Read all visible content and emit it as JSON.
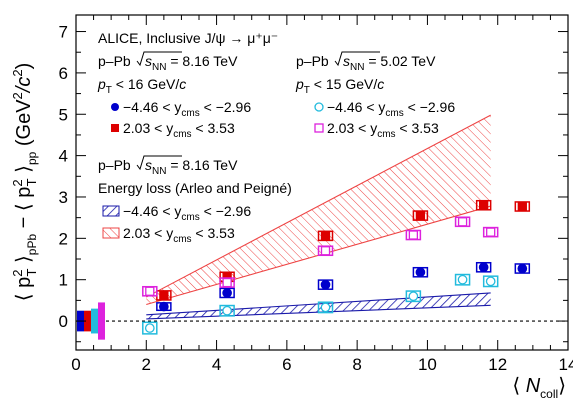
{
  "chart_data": {
    "type": "scatter",
    "x_range": [
      0,
      14
    ],
    "y_range": [
      -0.7,
      7.4
    ],
    "x_ticks": [
      0,
      2,
      4,
      6,
      8,
      10,
      12,
      14
    ],
    "y_ticks": [
      0,
      1,
      2,
      3,
      4,
      5,
      6,
      7
    ],
    "xlabel": {
      "open": "⟨ ",
      "main": "N",
      "sub": "coll",
      "close": "⟩"
    },
    "ylabel": {
      "lead": "⟨ p",
      "sup1": "2",
      "sub1": "T",
      "mid": " ⟩",
      "sub2": "pPb",
      "mid2": " − ⟨ p",
      "sup3": "2",
      "sub3": "T",
      "mid3": " ⟩",
      "sub4": "pp",
      "unit_open": " (GeV",
      "unit_sup": "2",
      "unit_mid": "/c",
      "unit_sup2": "2",
      "unit_close": ")"
    },
    "title": "ALICE, Inclusive J/ψ → μ⁺μ⁻",
    "system_label_pre": "p–Pb ",
    "sqrt_s": "s",
    "sqrt_s_sub": "NN",
    "energy_816": " = 8.16 TeV",
    "energy_502": " = 5.02 TeV",
    "pt_cut_16": {
      "p": "p",
      "sub": "T",
      "rest": " < 16 GeV/",
      "c": "c"
    },
    "pt_cut_15": {
      "p": "p",
      "sub": "T",
      "rest": " < 15 GeV/",
      "c": "c"
    },
    "y_bwd": {
      "pre": "−4.46 < y",
      "sub": "cms",
      "post": " < −2.96"
    },
    "y_fwd": {
      "pre": "2.03 < y",
      "sub": "cms",
      "post": " < 3.53"
    },
    "model_title": "Energy loss (Arleo and Peigné)",
    "colors": {
      "bwd_816": "#0000cc",
      "fwd_816": "#dd0000",
      "bwd_502": "#22bbdd",
      "fwd_502": "#dd22dd",
      "model_bwd": "#1a1aaa",
      "model_fwd": "#ee4444"
    },
    "series": [
      {
        "name": "8.16 TeV backward",
        "marker": "filled-circle",
        "color": "#0000cc",
        "x": [
          2.5,
          4.3,
          7.1,
          9.8,
          11.6,
          12.7
        ],
        "y": [
          0.35,
          0.68,
          0.88,
          1.18,
          1.3,
          1.27
        ],
        "err": [
          0.1,
          0.08,
          0.08,
          0.08,
          0.08,
          0.08
        ],
        "sys": [
          0.18,
          0.22,
          0.22,
          0.22,
          0.22,
          0.22
        ]
      },
      {
        "name": "8.16 TeV forward",
        "marker": "filled-square",
        "color": "#dd0000",
        "x": [
          2.5,
          4.3,
          7.1,
          9.8,
          11.6,
          12.7
        ],
        "y": [
          0.62,
          1.07,
          2.06,
          2.55,
          2.8,
          2.77
        ],
        "err": [
          0.12,
          0.12,
          0.12,
          0.12,
          0.12,
          0.12
        ],
        "sys": [
          0.22,
          0.22,
          0.22,
          0.22,
          0.22,
          0.22
        ]
      },
      {
        "name": "5.02 TeV backward",
        "marker": "open-circle",
        "color": "#22bbdd",
        "x": [
          2.1,
          4.3,
          7.1,
          9.6,
          11.0,
          11.8
        ],
        "y": [
          -0.17,
          0.25,
          0.33,
          0.6,
          1.0,
          0.96
        ],
        "err": [
          0.08,
          0.08,
          0.08,
          0.08,
          0.08,
          0.08
        ],
        "sys": [
          0.28,
          0.25,
          0.25,
          0.25,
          0.25,
          0.25
        ]
      },
      {
        "name": "5.02 TeV forward",
        "marker": "open-square",
        "color": "#dd22dd",
        "x": [
          2.1,
          4.3,
          7.1,
          9.6,
          11.0,
          11.8
        ],
        "y": [
          0.72,
          0.93,
          1.7,
          2.08,
          2.4,
          2.15
        ],
        "err": [
          0.08,
          0.08,
          0.08,
          0.08,
          0.08,
          0.08
        ],
        "sys": [
          0.22,
          0.22,
          0.22,
          0.22,
          0.22,
          0.22
        ]
      }
    ],
    "model_bands": [
      {
        "name": "backward",
        "pattern": "hatch-blue",
        "x": [
          2.0,
          11.8
        ],
        "upper": [
          0.15,
          0.68
        ],
        "lower": [
          0.05,
          0.38
        ]
      },
      {
        "name": "forward",
        "pattern": "hatch-red",
        "x": [
          2.0,
          11.8
        ],
        "upper": [
          0.58,
          4.98
        ],
        "lower": [
          0.4,
          2.78
        ]
      }
    ],
    "global_uncertainty_boxes": [
      {
        "color": "#0000cc",
        "y": [
          -0.25,
          0.25
        ]
      },
      {
        "color": "#dd0000",
        "y": [
          -0.25,
          0.25
        ]
      },
      {
        "color": "#22bbdd",
        "y": [
          -0.3,
          0.3
        ]
      },
      {
        "color": "#dd22dd",
        "y": [
          -0.45,
          0.45
        ]
      }
    ],
    "reference_line_y": 0,
    "grid": false,
    "legend_position": "top-left"
  }
}
